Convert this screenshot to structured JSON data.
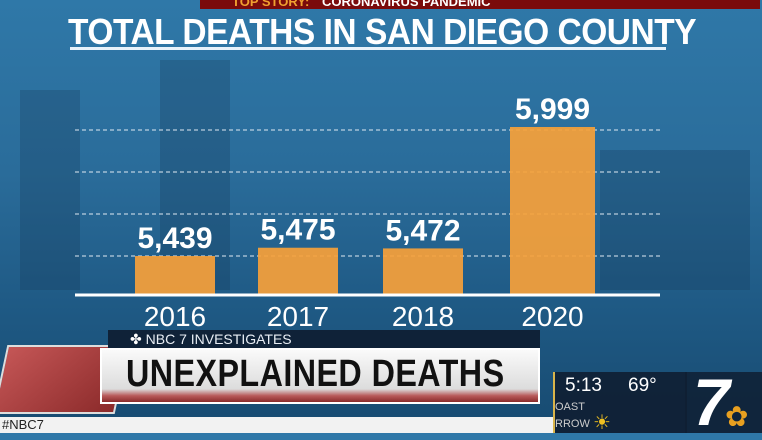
{
  "top_story": {
    "prefix": "TOP STORY:",
    "text": "CORONAVIRUS PANDEMIC"
  },
  "chart_data": {
    "type": "bar",
    "title": "TOTAL DEATHS IN SAN DIEGO COUNTY",
    "categories": [
      "2016",
      "2017",
      "2018",
      "2020"
    ],
    "values": [
      5439,
      5475,
      5472,
      5999
    ],
    "data_labels": [
      "5,439",
      "5,475",
      "5,472",
      "5,999"
    ],
    "grid": true,
    "bar_color": "#f7a13a"
  },
  "lower_third": {
    "kicker": "NBC 7 INVESTIGATES",
    "headline": "UNEXPLAINED DEATHS"
  },
  "ticker": {
    "text": "#NBC7"
  },
  "weather": {
    "time": "5:13",
    "temp": "69°",
    "line1": "OAST",
    "line2": "RROW",
    "icon": "sun-icon"
  },
  "station_logo": {
    "text": "7",
    "icon": "nbc-peacock-icon"
  }
}
